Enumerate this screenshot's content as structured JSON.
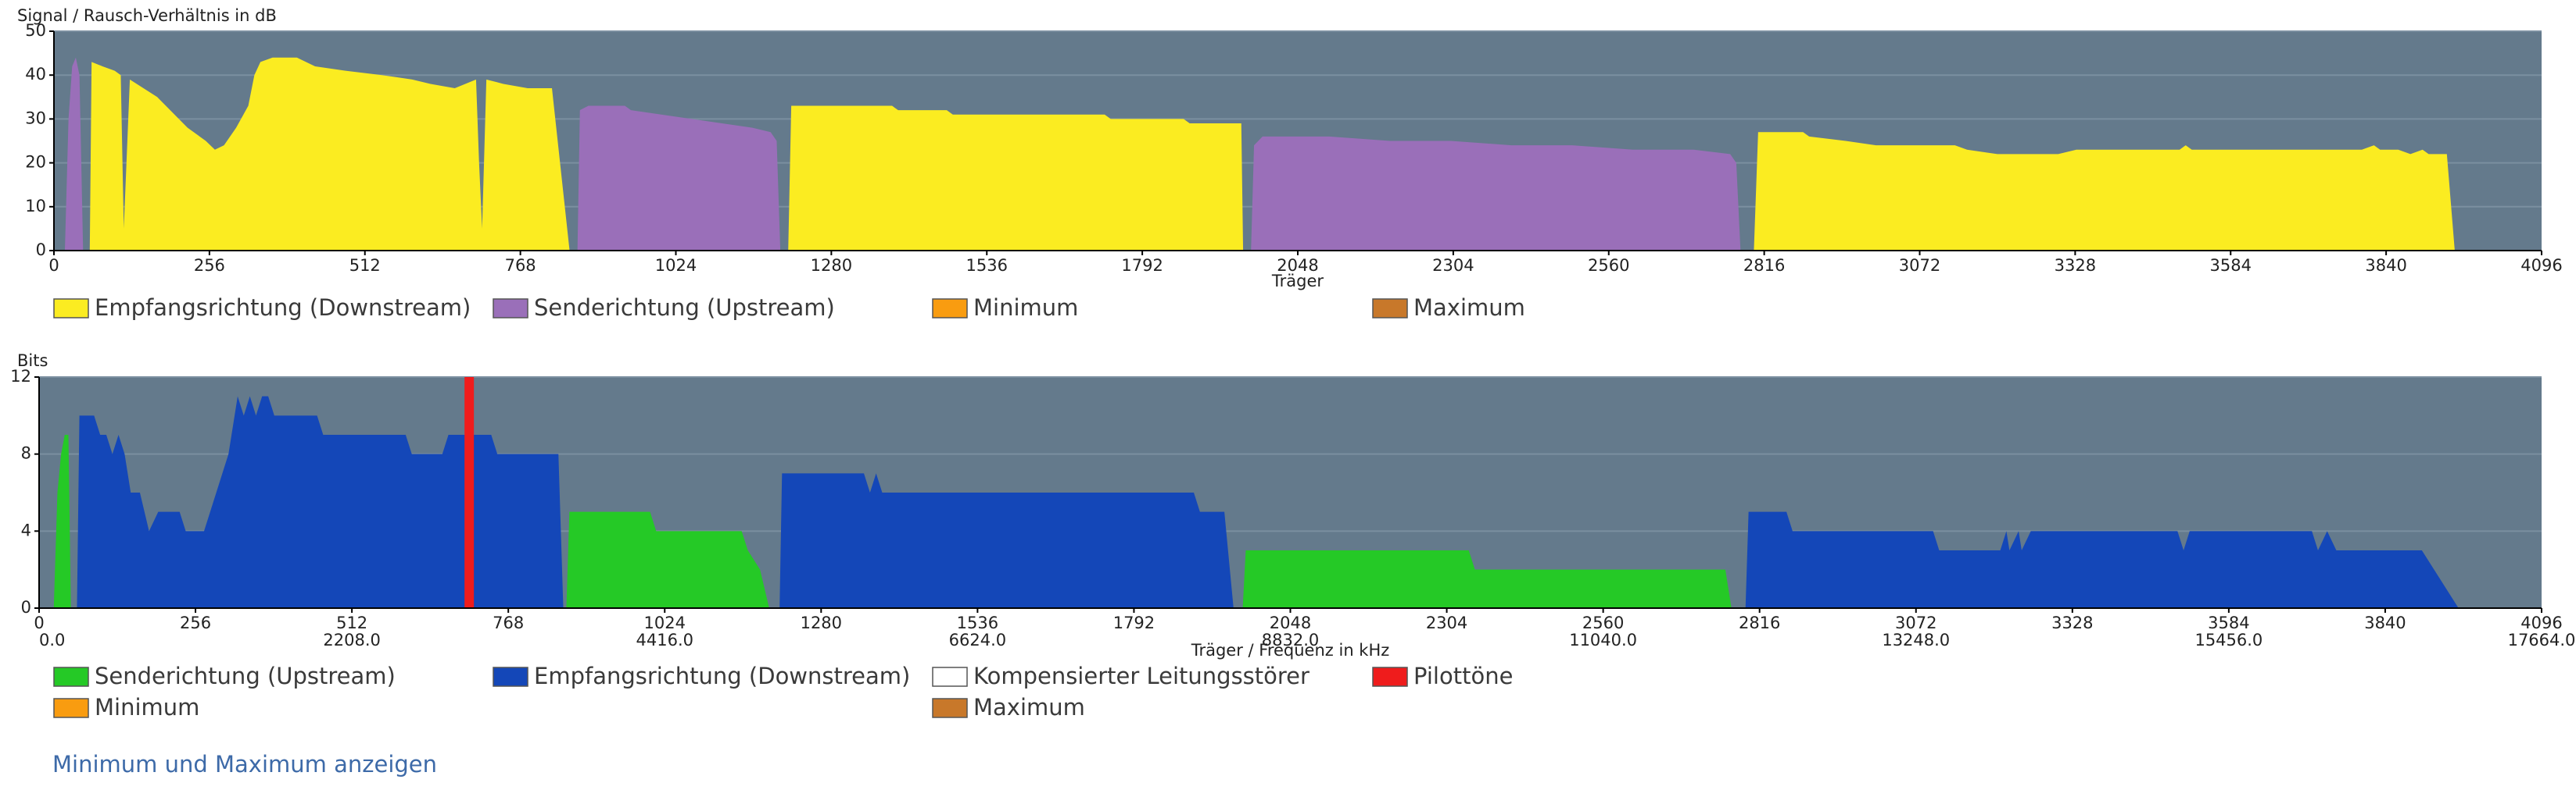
{
  "chart_data": [
    {
      "type": "area",
      "title": "Signal / Rausch-Verhältnis in dB",
      "x_label": "Träger",
      "xlim": [
        0,
        4096
      ],
      "xticks": [
        0,
        256,
        512,
        768,
        1024,
        1280,
        1536,
        1792,
        2048,
        2304,
        2560,
        2816,
        3072,
        3328,
        3584,
        3840,
        4096
      ],
      "ylim": [
        0,
        50
      ],
      "yticks": [
        0,
        10,
        20,
        30,
        40,
        50
      ],
      "grid": true,
      "series": [
        {
          "name": "Empfangsrichtung (Downstream)",
          "color": "#fbec21",
          "x": [
            59,
            62,
            80,
            100,
            110,
            115,
            125,
            170,
            220,
            250,
            265,
            280,
            300,
            320,
            330,
            340,
            360,
            400,
            430,
            480,
            540,
            590,
            620,
            660,
            695,
            700,
            705,
            712,
            740,
            780,
            820,
            849,
            null,
            1209,
            1214,
            1380,
            1390,
            1470,
            1480,
            1640,
            1650,
            1730,
            1740,
            1860,
            1870,
            1955,
            1958,
            null,
            2799,
            2806,
            2880,
            2890,
            2950,
            3000,
            3130,
            3150,
            3200,
            3300,
            3330,
            3500,
            3510,
            3520,
            3800,
            3820,
            3830,
            3860,
            3880,
            3900,
            3910,
            3940,
            3953
          ],
          "values": [
            0,
            43,
            42,
            41,
            40,
            5,
            39,
            35,
            28,
            25,
            23,
            24,
            28,
            33,
            40,
            43,
            44,
            44,
            42,
            41,
            40,
            39,
            38,
            37,
            39,
            20,
            5,
            39,
            38,
            37,
            37,
            0,
            null,
            0,
            33,
            33,
            32,
            32,
            31,
            31,
            31,
            31,
            30,
            30,
            29,
            29,
            0,
            null,
            0,
            27,
            27,
            26,
            25,
            24,
            24,
            23,
            22,
            22,
            23,
            23,
            24,
            23,
            23,
            24,
            23,
            23,
            22,
            23,
            22,
            22,
            0
          ]
        },
        {
          "name": "Senderichtung (Upstream)",
          "color": "#9a6fb9",
          "x": [
            18,
            24,
            30,
            36,
            42,
            48,
            null,
            862,
            866,
            880,
            940,
            950,
            1000,
            1050,
            1100,
            1150,
            1180,
            1190,
            1196,
            null,
            1971,
            1976,
            1990,
            2100,
            2200,
            2300,
            2400,
            2500,
            2600,
            2700,
            2760,
            2770,
            2777
          ],
          "values": [
            0,
            30,
            42,
            44,
            40,
            0,
            null,
            0,
            32,
            33,
            33,
            32,
            31,
            30,
            29,
            28,
            27,
            25,
            0,
            null,
            0,
            24,
            26,
            26,
            25,
            25,
            24,
            24,
            23,
            23,
            22,
            20,
            0
          ]
        },
        {
          "name": "Minimum",
          "color": "#f99c10"
        },
        {
          "name": "Maximum",
          "color": "#c8782a"
        }
      ]
    },
    {
      "type": "area",
      "title": "Bits",
      "x_label": "Träger / Frequenz in kHz",
      "xlim": [
        0,
        4096
      ],
      "xticks": [
        0,
        256,
        512,
        768,
        1024,
        1280,
        1536,
        1792,
        2048,
        2304,
        2560,
        2816,
        3072,
        3328,
        3584,
        3840,
        4096
      ],
      "x2lim": [
        0,
        17664
      ],
      "x2ticks": [
        {
          "value": 0,
          "label": "0.0"
        },
        {
          "value": 2208,
          "label": "2208.0"
        },
        {
          "value": 4416,
          "label": "4416.0"
        },
        {
          "value": 6624,
          "label": "6624.0"
        },
        {
          "value": 8832,
          "label": "8832.0"
        },
        {
          "value": 11040,
          "label": "11040.0"
        },
        {
          "value": 13248,
          "label": "13248.0"
        },
        {
          "value": 15456,
          "label": "15456.0"
        },
        {
          "value": 17664,
          "label": "17664.0"
        }
      ],
      "ylim": [
        0,
        12
      ],
      "yticks": [
        0,
        4,
        8,
        12
      ],
      "grid": true,
      "series": [
        {
          "name": "Senderichtung (Upstream)",
          "color": "#25c926",
          "x": [
            24,
            30,
            36,
            42,
            48,
            52,
            null,
            863,
            868,
            1000,
            1010,
            1150,
            1160,
            1180,
            1195,
            null,
            1970,
            1975,
            2340,
            2350,
            2760,
            2770
          ],
          "values": [
            0,
            6,
            8,
            9,
            9,
            0,
            null,
            0,
            5,
            5,
            4,
            4,
            3,
            2,
            0,
            null,
            0,
            3,
            3,
            2,
            2,
            0
          ]
        },
        {
          "name": "Empfangsrichtung (Downstream)",
          "color": "#1447b8",
          "x": [
            62,
            66,
            90,
            100,
            110,
            120,
            130,
            140,
            150,
            165,
            180,
            195,
            230,
            240,
            270,
            290,
            310,
            320,
            325,
            335,
            345,
            355,
            365,
            375,
            385,
            455,
            465,
            600,
            610,
            660,
            670,
            740,
            750,
            850,
            858,
            null,
            1212,
            1216,
            1350,
            1360,
            1370,
            1380,
            1890,
            1900,
            1940,
            1955,
            null,
            2793,
            2798,
            2860,
            2870,
            3100,
            3110,
            3210,
            3220,
            3225,
            3240,
            3245,
            3260,
            3500,
            3510,
            3520,
            3720,
            3730,
            3745,
            3760,
            3890,
            3900,
            3960
          ],
          "values": [
            0,
            10,
            10,
            9,
            9,
            8,
            9,
            8,
            6,
            6,
            4,
            5,
            5,
            4,
            4,
            6,
            8,
            10,
            11,
            10,
            11,
            10,
            11,
            11,
            10,
            10,
            9,
            9,
            8,
            8,
            9,
            9,
            8,
            8,
            0,
            null,
            0,
            7,
            7,
            6,
            7,
            6,
            6,
            5,
            5,
            0,
            null,
            0,
            5,
            5,
            4,
            4,
            3,
            3,
            4,
            3,
            4,
            3,
            4,
            4,
            3,
            4,
            4,
            3,
            4,
            3,
            3,
            3,
            0
          ]
        },
        {
          "name": "Kompensierter Leitungsstörer",
          "color": "#ffffff"
        },
        {
          "name": "Pilottöne",
          "color": "#ef1c1c",
          "type": "bar",
          "x": [
            704
          ],
          "values": [
            12
          ]
        },
        {
          "name": "Minimum",
          "color": "#f99c10"
        },
        {
          "name": "Maximum",
          "color": "#c8782a"
        }
      ]
    }
  ],
  "link": "Minimum und Maximum anzeigen"
}
